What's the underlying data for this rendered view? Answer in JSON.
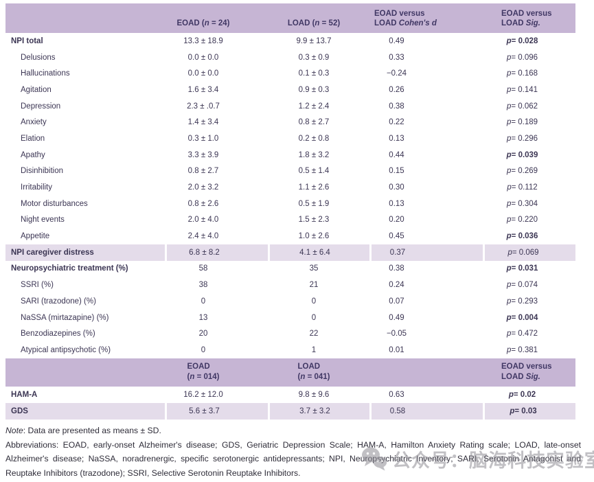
{
  "table": {
    "header1": [
      "",
      "EOAD (*n* = 24)",
      "LOAD (*n* = 52)",
      "EOAD versus\nLOAD *Cohen's d*",
      "EOAD versus\nLOAD *Sig.*"
    ],
    "header2": [
      "",
      "EOAD\n(*n* = 014)",
      "LOAD\n(*n* = 041)",
      "",
      "EOAD versus\nLOAD *Sig.*"
    ],
    "rows": [
      {
        "label": "NPI total",
        "indent": false,
        "bold": true,
        "shaded": false,
        "eoad": "13.3 ± 18.9",
        "load": "9.9 ± 13.7",
        "d": "0.49",
        "sig": "*p* = 0.028",
        "sig_bold": true
      },
      {
        "label": "Delusions",
        "indent": true,
        "bold": false,
        "shaded": false,
        "eoad": "0.0 ± 0.0",
        "load": "0.3 ± 0.9",
        "d": "0.33",
        "sig": "*p* = 0.096",
        "sig_bold": false
      },
      {
        "label": "Hallucinations",
        "indent": true,
        "bold": false,
        "shaded": false,
        "eoad": "0.0 ± 0.0",
        "load": "0.1 ± 0.3",
        "d": "−0.24",
        "sig": "*p* = 0.168",
        "sig_bold": false
      },
      {
        "label": "Agitation",
        "indent": true,
        "bold": false,
        "shaded": false,
        "eoad": "1.6 ± 3.4",
        "load": "0.9 ± 0.3",
        "d": "0.26",
        "sig": "*p* = 0.141",
        "sig_bold": false
      },
      {
        "label": "Depression",
        "indent": true,
        "bold": false,
        "shaded": false,
        "eoad": "2.3 ± .0.7",
        "load": "1.2 ± 2.4",
        "d": "0.38",
        "sig": "*p* = 0.062",
        "sig_bold": false
      },
      {
        "label": "Anxiety",
        "indent": true,
        "bold": false,
        "shaded": false,
        "eoad": "1.4 ± 3.4",
        "load": "0.8 ± 2.7",
        "d": "0.22",
        "sig": "*p* = 0.189",
        "sig_bold": false
      },
      {
        "label": "Elation",
        "indent": true,
        "bold": false,
        "shaded": false,
        "eoad": "0.3 ± 1.0",
        "load": "0.2 ± 0.8",
        "d": "0.13",
        "sig": "*p* = 0.296",
        "sig_bold": false
      },
      {
        "label": "Apathy",
        "indent": true,
        "bold": false,
        "shaded": false,
        "eoad": "3.3 ± 3.9",
        "load": "1.8 ± 3.2",
        "d": "0.44",
        "sig": "*p* = 0.039",
        "sig_bold": true
      },
      {
        "label": "Disinhibition",
        "indent": true,
        "bold": false,
        "shaded": false,
        "eoad": "0.8 ± 2.7",
        "load": "0.5 ± 1.4",
        "d": "0.15",
        "sig": "*p* = 0.269",
        "sig_bold": false
      },
      {
        "label": "Irritability",
        "indent": true,
        "bold": false,
        "shaded": false,
        "eoad": "2.0 ± 3.2",
        "load": "1.1 ± 2.6",
        "d": "0.30",
        "sig": "*p* = 0.112",
        "sig_bold": false
      },
      {
        "label": "Motor disturbances",
        "indent": true,
        "bold": false,
        "shaded": false,
        "eoad": "0.8 ± 2.6",
        "load": "0.5 ± 1.9",
        "d": "0.13",
        "sig": "*p* = 0.304",
        "sig_bold": false
      },
      {
        "label": "Night events",
        "indent": true,
        "bold": false,
        "shaded": false,
        "eoad": "2.0 ± 4.0",
        "load": "1.5 ± 2.3",
        "d": "0.20",
        "sig": "*p* = 0.220",
        "sig_bold": false
      },
      {
        "label": "Appetite",
        "indent": true,
        "bold": false,
        "shaded": false,
        "eoad": "2.4 ± 4.0",
        "load": "1.0 ± 2.6",
        "d": "0.45",
        "sig": "*p* = 0.036",
        "sig_bold": true
      },
      {
        "label": "NPI caregiver distress",
        "indent": false,
        "bold": true,
        "shaded": true,
        "eoad": "6.8 ± 8.2",
        "load": "4.1 ± 6.4",
        "d": "0.37",
        "sig": "*p* = 0.069",
        "sig_bold": false
      },
      {
        "label": "Neuropsychiatric treatment (%)",
        "indent": false,
        "bold": true,
        "shaded": false,
        "eoad": "58",
        "load": "35",
        "d": "0.38",
        "sig": "*p* = 0.031",
        "sig_bold": true
      },
      {
        "label": "SSRI (%)",
        "indent": true,
        "bold": false,
        "shaded": false,
        "eoad": "38",
        "load": "21",
        "d": "0.24",
        "sig": "*p* = 0.074",
        "sig_bold": false
      },
      {
        "label": "SARI (trazodone) (%)",
        "indent": true,
        "bold": false,
        "shaded": false,
        "eoad": "0",
        "load": "0",
        "d": "0.07",
        "sig": "*p* = 0.293",
        "sig_bold": false
      },
      {
        "label": "NaSSA (mirtazapine) (%)",
        "indent": true,
        "bold": false,
        "shaded": false,
        "eoad": "13",
        "load": "0",
        "d": "0.49",
        "sig": "*p* = 0.004",
        "sig_bold": true
      },
      {
        "label": "Benzodiazepines (%)",
        "indent": true,
        "bold": false,
        "shaded": false,
        "eoad": "20",
        "load": "22",
        "d": "−0.05",
        "sig": "*p* = 0.472",
        "sig_bold": false
      },
      {
        "label": "Atypical antipsychotic (%)",
        "indent": true,
        "bold": false,
        "shaded": false,
        "eoad": "0",
        "load": "1",
        "d": "0.01",
        "sig": "*p* = 0.381",
        "sig_bold": false
      }
    ],
    "rows2": [
      {
        "label": "HAM-A",
        "indent": false,
        "bold": true,
        "shaded": false,
        "eoad": "16.2 ± 12.0",
        "load": "9.8 ± 9.6",
        "d": "0.63",
        "sig": "*p* = 0.02",
        "sig_bold": true
      },
      {
        "label": "GDS",
        "indent": false,
        "bold": true,
        "shaded": true,
        "eoad": "5.6 ± 3.7",
        "load": "3.7 ± 3.2",
        "d": "0.58",
        "sig": "*p* = 0.03",
        "sig_bold": true
      }
    ]
  },
  "footnotes": {
    "note": "*Note*: Data are presented as means ± SD.",
    "abbreviations": "Abbreviations: EOAD, early-onset Alzheimer's disease; GDS, Geriatric Depression Scale; HAM-A, Hamilton Anxiety Rating scale; LOAD, late-onset Alzheimer's disease; NaSSA, noradrenergic, specific serotonergic antidepressants; NPI, Neuropsychiatric Inventory; SARI, Serotonin Antagonist and Reuptake Inhibitors (trazodone); SSRI, Selective Serotonin Reuptake Inhibitors."
  },
  "watermark": {
    "icon": "wechat-icon",
    "text": "公众号：脑海科技实验室"
  },
  "colors": {
    "header_bg": "#c6b5d4",
    "shaded_row_bg": "#e4dcea",
    "table_text": "#3b3553",
    "header_text": "#403764",
    "footnote_text": "#2e2c38",
    "watermark": "#8f8d95"
  }
}
